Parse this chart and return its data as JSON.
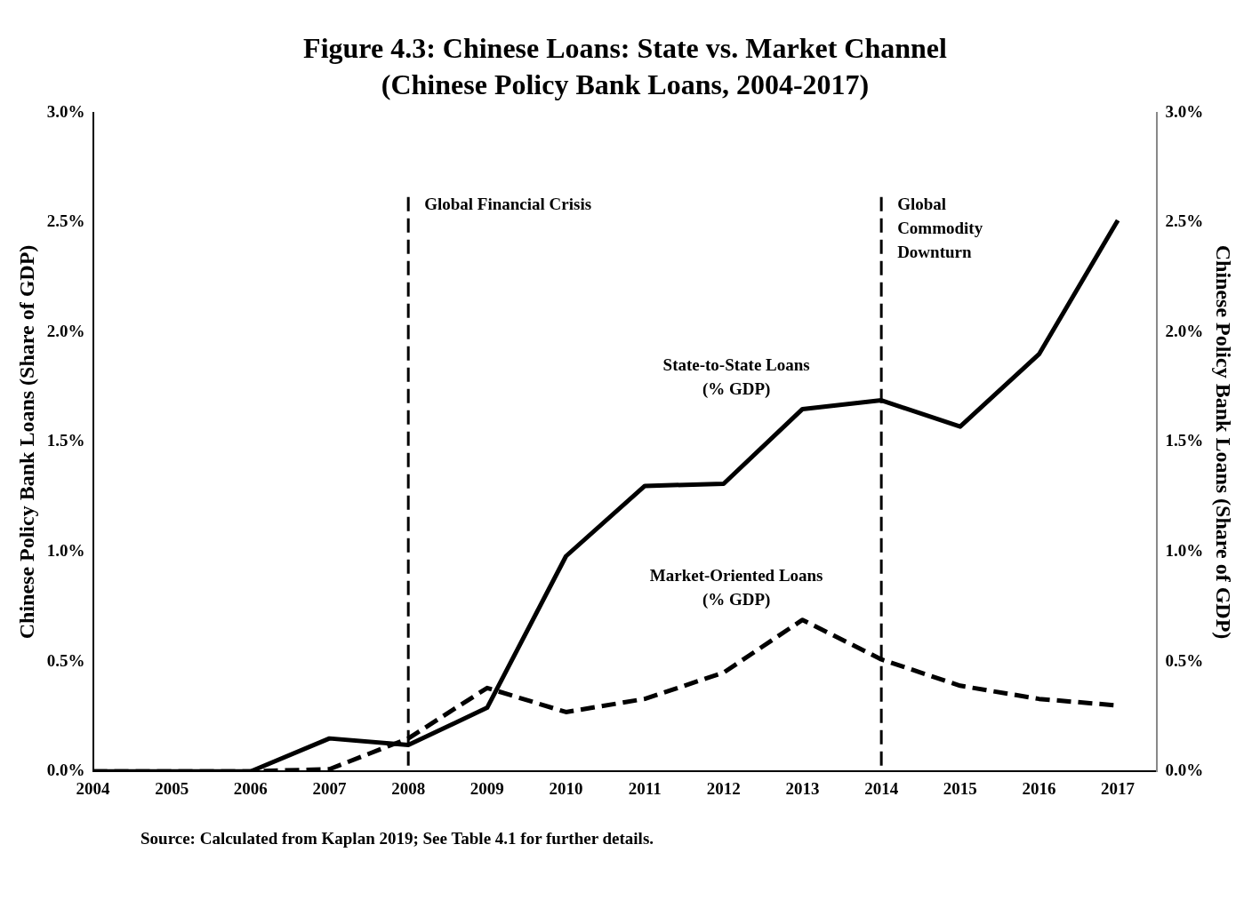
{
  "chart_data": {
    "type": "line",
    "title": "Figure 4.3: Chinese Loans: State vs. Market Channel",
    "subtitle": "(Chinese Policy Bank Loans, 2004-2017)",
    "ylabel": "Chinese Policy Bank Loans (Share of GDP)",
    "y2label": "Chinese Policy Bank Loans (Share of GDP)",
    "x": [
      2004,
      2005,
      2006,
      2007,
      2008,
      2009,
      2010,
      2011,
      2012,
      2013,
      2014,
      2015,
      2016,
      2017
    ],
    "xlim": [
      2004,
      2017.5
    ],
    "xticks": [
      2004,
      2005,
      2006,
      2007,
      2008,
      2009,
      2010,
      2011,
      2012,
      2013,
      2014,
      2015,
      2016,
      2017
    ],
    "ylim": [
      0,
      3
    ],
    "yticks": [
      {
        "value": 0,
        "label": "0.0%"
      },
      {
        "value": 0.5,
        "label": "0.5%"
      },
      {
        "value": 1,
        "label": "1.0%"
      },
      {
        "value": 1.5,
        "label": "1.5%"
      },
      {
        "value": 2,
        "label": "2.0%"
      },
      {
        "value": 2.5,
        "label": "2.5%"
      },
      {
        "value": 3,
        "label": "3.0%"
      }
    ],
    "y2lim": [
      0,
      3
    ],
    "y2ticks": [
      {
        "value": 0,
        "label": "0.0%"
      },
      {
        "value": 0.5,
        "label": "0.5%"
      },
      {
        "value": 1,
        "label": "1.0%"
      },
      {
        "value": 1.5,
        "label": "1.5%"
      },
      {
        "value": 2,
        "label": "2.0%"
      },
      {
        "value": 2.5,
        "label": "2.5%"
      },
      {
        "value": 3,
        "label": "3.0%"
      }
    ],
    "series": [
      {
        "name": "State-to-State Loans\n(% GDP)",
        "color": "#000000",
        "line_style": "solid",
        "values": [
          0,
          0,
          0,
          0.15,
          0.12,
          0.29,
          0.98,
          1.3,
          1.31,
          1.65,
          1.69,
          1.57,
          1.9,
          2.51
        ]
      },
      {
        "name": "Market-Oriented Loans\n(% GDP)",
        "color": "#000000",
        "line_style": "dashed",
        "values": [
          0,
          0,
          0,
          0.01,
          0.15,
          0.38,
          0.27,
          0.33,
          0.45,
          0.69,
          0.51,
          0.39,
          0.33,
          0.3
        ]
      }
    ],
    "ref_lines": [
      {
        "axis": "x",
        "value": 2008,
        "label": "Global Financial Crisis",
        "color": "#000000",
        "line_style": "dashed"
      },
      {
        "axis": "x",
        "value": 2014,
        "label": "Global\nCommodity\nDownturn",
        "color": "#000000",
        "line_style": "dashed"
      }
    ],
    "annotations": [
      "Source: Calculated from Kaplan 2019; See Table 4.1 for further details."
    ],
    "grid": false,
    "legend": false,
    "marker": "none"
  }
}
